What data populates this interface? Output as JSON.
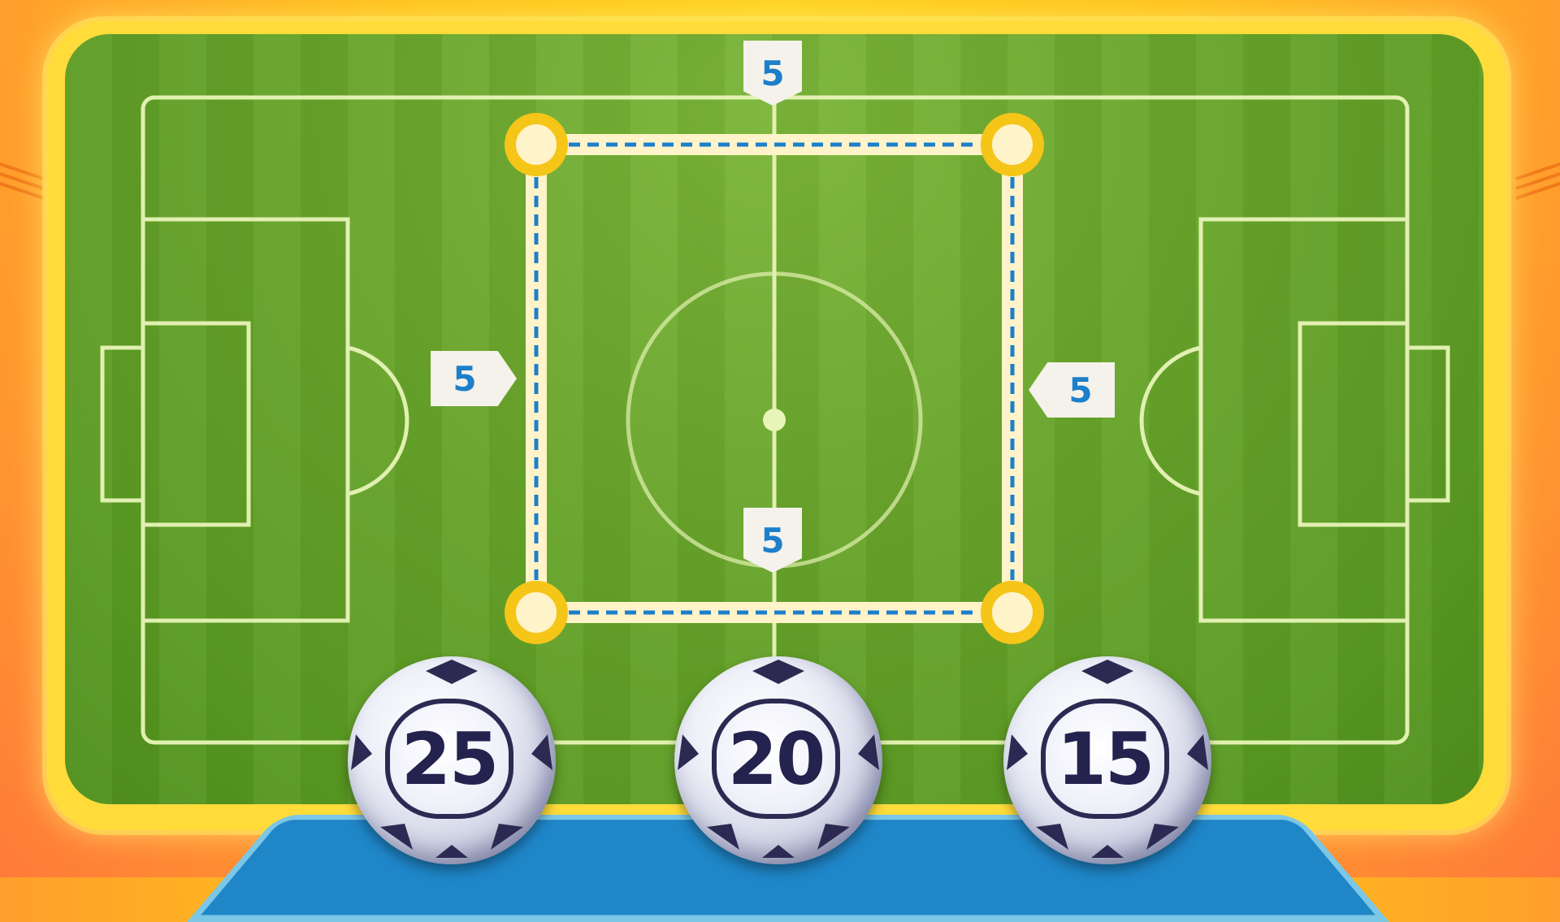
{
  "measurements": {
    "top": "5",
    "left": "5",
    "right": "5",
    "bottom": "5"
  },
  "answer_options": [
    {
      "label": "25"
    },
    {
      "label": "20"
    },
    {
      "label": "15"
    }
  ],
  "colors": {
    "background": "#ffc21a",
    "field_green": "#6aa62c",
    "field_lines": "#e8f5b8",
    "square_fill": "#fff3c9",
    "vertex": "#f5c518",
    "dashed_line": "#1d7fcb",
    "tag_text": "#1d7fcb",
    "tray": "#1f86c8",
    "ball_number": "#24224e"
  }
}
